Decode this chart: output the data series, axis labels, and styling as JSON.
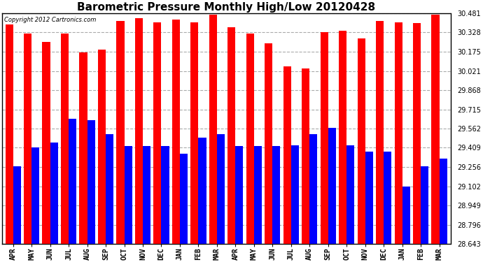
{
  "title": "Barometric Pressure Monthly High/Low 20120428",
  "copyright": "Copyright 2012 Cartronics.com",
  "months": [
    "APR",
    "MAY",
    "JUN",
    "JUL",
    "AUG",
    "SEP",
    "OCT",
    "NOV",
    "DEC",
    "JAN",
    "FEB",
    "MAR",
    "APR",
    "MAY",
    "JUN",
    "JUL",
    "AUG",
    "SEP",
    "OCT",
    "NOV",
    "DEC",
    "JAN",
    "FEB",
    "MAR"
  ],
  "highs": [
    30.39,
    30.32,
    30.25,
    30.32,
    30.17,
    30.19,
    30.42,
    30.44,
    30.41,
    30.43,
    30.41,
    30.47,
    30.37,
    30.32,
    30.24,
    30.06,
    30.04,
    30.33,
    30.34,
    30.28,
    30.42,
    30.41,
    30.4,
    30.47
  ],
  "lows": [
    29.26,
    29.41,
    29.45,
    29.64,
    29.63,
    29.52,
    29.42,
    29.42,
    29.42,
    29.36,
    29.49,
    29.52,
    29.42,
    29.42,
    29.42,
    29.43,
    29.52,
    29.57,
    29.43,
    29.38,
    29.38,
    29.1,
    29.26,
    29.32
  ],
  "high_color": "#ff0000",
  "low_color": "#0000ff",
  "bg_color": "#ffffff",
  "grid_color": "#aaaaaa",
  "ylim_min": 28.643,
  "ylim_max": 30.481,
  "yticks": [
    28.643,
    28.796,
    28.949,
    29.102,
    29.256,
    29.409,
    29.562,
    29.715,
    29.868,
    30.021,
    30.175,
    30.328,
    30.481
  ],
  "title_fontsize": 11,
  "tick_fontsize": 7,
  "bar_width": 0.42
}
